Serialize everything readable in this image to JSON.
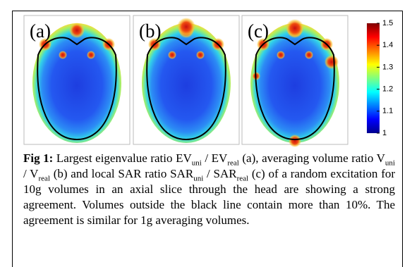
{
  "figure": {
    "panels": [
      {
        "label": "(a)"
      },
      {
        "label": "(b)"
      },
      {
        "label": "(c)"
      }
    ],
    "colorbar": {
      "lim": [
        1,
        1.5
      ],
      "ticks": [
        1.5,
        1.4,
        1.3,
        1.2,
        1.1,
        1
      ]
    },
    "caption": {
      "label": "Fig 1:",
      "parts": [
        " Largest eigenvalue ratio EV",
        {
          "sub": "uni"
        },
        " / EV",
        {
          "sub": "real"
        },
        " (a), averaging volume ratio V",
        {
          "sub": "uni"
        },
        " / V",
        {
          "sub": "real"
        },
        " (b) and local SAR ratio SAR",
        {
          "sub": "uni"
        },
        " / SAR",
        {
          "sub": "real"
        },
        " (c) of a random excitation for 10g volumes in an axial slice through the head are showing a strong agreement. Volumes outside the black line contain more than 10%. The agreement is similar for 1g averaging volumes."
      ]
    }
  }
}
